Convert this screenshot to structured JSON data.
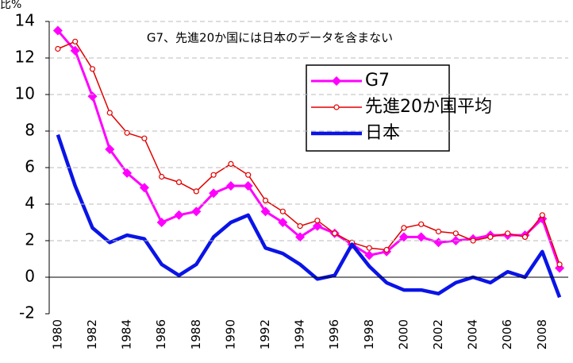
{
  "chart_data": {
    "type": "line",
    "y_label": "比%",
    "annotation": "G7、先進20か国には日本のデータを含まない",
    "x": [
      1980,
      1981,
      1982,
      1983,
      1984,
      1985,
      1986,
      1987,
      1988,
      1989,
      1990,
      1991,
      1992,
      1993,
      1994,
      1995,
      1996,
      1997,
      1998,
      1999,
      2000,
      2001,
      2002,
      2003,
      2004,
      2005,
      2006,
      2007,
      2008,
      2009
    ],
    "xlim": [
      1979.5,
      2009.5
    ],
    "xticks": [
      1980,
      1982,
      1984,
      1986,
      1988,
      1990,
      1992,
      1994,
      1996,
      1998,
      2000,
      2002,
      2004,
      2006,
      2008
    ],
    "ylim": [
      -2,
      14
    ],
    "yticks": [
      -2,
      0,
      2,
      4,
      6,
      8,
      10,
      12,
      14
    ],
    "grid": true,
    "series": [
      {
        "name": "G7",
        "color": "#ff00ff",
        "marker": "diamond",
        "line_width": 3,
        "values": [
          13.5,
          12.4,
          9.9,
          7.0,
          5.7,
          4.9,
          3.0,
          3.4,
          3.6,
          4.6,
          5.0,
          5.0,
          3.6,
          3.0,
          2.2,
          2.8,
          2.4,
          1.8,
          1.2,
          1.4,
          2.2,
          2.2,
          1.9,
          2.0,
          2.1,
          2.3,
          2.3,
          2.3,
          3.2,
          0.5
        ]
      },
      {
        "name": "先進20か国平均",
        "color": "#e00000",
        "marker": "circle",
        "line_width": 1.5,
        "values": [
          12.5,
          12.9,
          11.4,
          9.0,
          7.9,
          7.6,
          5.5,
          5.2,
          4.7,
          5.6,
          6.2,
          5.6,
          4.2,
          3.6,
          2.8,
          3.1,
          2.4,
          1.9,
          1.6,
          1.5,
          2.7,
          2.9,
          2.5,
          2.4,
          2.0,
          2.2,
          2.4,
          2.2,
          3.4,
          0.7
        ]
      },
      {
        "name": "日本",
        "color": "#0a14e6",
        "marker": "none",
        "line_width": 4.5,
        "values": [
          7.8,
          5.0,
          2.7,
          1.9,
          2.3,
          2.1,
          0.7,
          0.1,
          0.7,
          2.2,
          3.0,
          3.4,
          1.6,
          1.3,
          0.7,
          -0.1,
          0.1,
          1.8,
          0.6,
          -0.3,
          -0.7,
          -0.7,
          -0.9,
          -0.3,
          0.0,
          -0.3,
          0.3,
          0.0,
          1.4,
          -1.1
        ]
      }
    ]
  }
}
